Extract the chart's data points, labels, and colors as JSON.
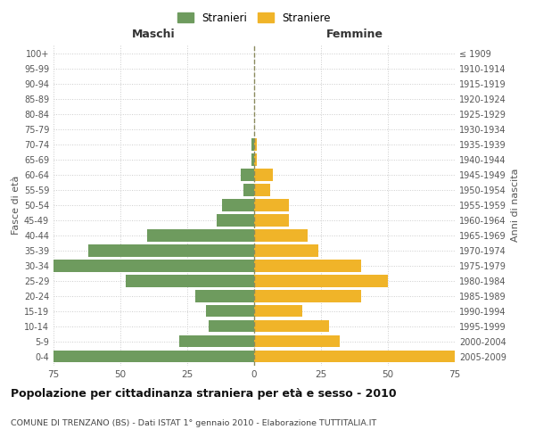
{
  "age_groups": [
    "0-4",
    "5-9",
    "10-14",
    "15-19",
    "20-24",
    "25-29",
    "30-34",
    "35-39",
    "40-44",
    "45-49",
    "50-54",
    "55-59",
    "60-64",
    "65-69",
    "70-74",
    "75-79",
    "80-84",
    "85-89",
    "90-94",
    "95-99",
    "100+"
  ],
  "birth_years": [
    "2005-2009",
    "2000-2004",
    "1995-1999",
    "1990-1994",
    "1985-1989",
    "1980-1984",
    "1975-1979",
    "1970-1974",
    "1965-1969",
    "1960-1964",
    "1955-1959",
    "1950-1954",
    "1945-1949",
    "1940-1944",
    "1935-1939",
    "1930-1934",
    "1925-1929",
    "1920-1924",
    "1915-1919",
    "1910-1914",
    "≤ 1909"
  ],
  "maschi": [
    75,
    28,
    17,
    18,
    22,
    48,
    75,
    62,
    40,
    14,
    12,
    4,
    5,
    1,
    1,
    0,
    0,
    0,
    0,
    0,
    0
  ],
  "femmine": [
    75,
    32,
    28,
    18,
    40,
    50,
    40,
    24,
    20,
    13,
    13,
    6,
    7,
    1,
    1,
    0,
    0,
    0,
    0,
    0,
    0
  ],
  "male_color": "#6e9b5e",
  "female_color": "#f0b429",
  "background_color": "#ffffff",
  "grid_color": "#cccccc",
  "center_line_color": "#8b8b5e",
  "xlim": 75,
  "xlabel_left": "Maschi",
  "xlabel_right": "Femmine",
  "ylabel_left": "Fasce di età",
  "ylabel_right": "Anni di nascita",
  "title": "Popolazione per cittadinanza straniera per età e sesso - 2010",
  "subtitle": "COMUNE DI TRENZANO (BS) - Dati ISTAT 1° gennaio 2010 - Elaborazione TUTTITALIA.IT",
  "legend_male": "Stranieri",
  "legend_female": "Straniere"
}
